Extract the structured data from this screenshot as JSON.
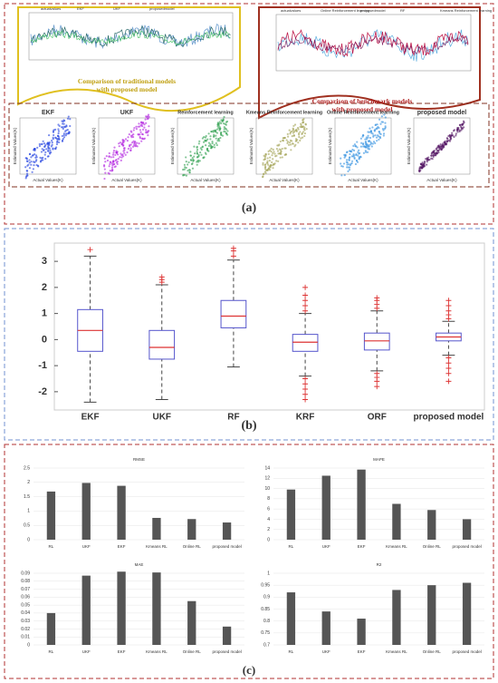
{
  "panel_labels": [
    "(a)",
    "(b)",
    "(c)"
  ],
  "panel_a": {
    "left_legend": [
      "actualvalues",
      "EKF",
      "UKF",
      "proposedmodel"
    ],
    "left_caption": "Comparison of traditional models with proposed model",
    "right_legend": [
      "actualvalues",
      "Online Reinforcement learning",
      "proposedmodel",
      "RF",
      "Kmeans Reinforcement learning"
    ],
    "right_caption": "Comparison of benchmark models with proposed model",
    "scatter_titles": [
      "EKF",
      "UKF",
      "Reinforcement learning",
      "Kmeans Reinforcement learning",
      "Online Reinforcement learning",
      "proposed model"
    ],
    "x_label": "Actual Values(K)",
    "y_label": "Estimated Values(K)"
  },
  "chart_data": [
    {
      "type": "box",
      "categories": [
        "EKF",
        "UKF",
        "RF",
        "KRF",
        "ORF",
        "proposed model"
      ],
      "ylim": [
        -2.7,
        3.7
      ],
      "yticks": [
        -2,
        -1,
        0,
        1,
        2,
        3
      ],
      "whisker_low": [
        -2.4,
        -2.3,
        -1.05,
        -1.4,
        -1.2,
        -0.6
      ],
      "q1": [
        -0.45,
        -0.75,
        0.45,
        -0.45,
        -0.4,
        -0.05
      ],
      "median": [
        0.35,
        -0.3,
        0.9,
        -0.1,
        -0.05,
        0.1
      ],
      "q3": [
        1.15,
        0.35,
        1.5,
        0.2,
        0.25,
        0.25
      ],
      "whisker_high": [
        3.2,
        2.1,
        3.05,
        1.0,
        1.1,
        0.7
      ],
      "outliers": [
        [
          3.45
        ],
        [
          2.2,
          2.3,
          2.4
        ],
        [
          3.2,
          3.4,
          3.5
        ],
        [
          1.1,
          1.3,
          1.5,
          1.7,
          2.0,
          -1.5,
          -1.7,
          -1.9,
          -2.1,
          -2.3
        ],
        [
          1.2,
          1.35,
          1.5,
          1.6,
          -1.3,
          -1.45,
          -1.6,
          -1.8
        ],
        [
          0.8,
          0.95,
          1.1,
          1.3,
          1.5,
          -0.7,
          -0.9,
          -1.1,
          -1.3,
          -1.6
        ]
      ],
      "box_color": "#5555cc",
      "median_color": "#dd3333"
    },
    {
      "type": "bar",
      "title": "RMSE",
      "categories": [
        "RL",
        "UKF",
        "EKF",
        "Kmeans RL",
        "Online RL",
        "proposed model"
      ],
      "values": [
        1.68,
        1.98,
        1.88,
        0.76,
        0.72,
        0.6
      ],
      "ylim": [
        0,
        2.5
      ],
      "yticks": [
        0,
        0.5,
        1,
        1.5,
        2,
        2.5
      ],
      "color": "#555555"
    },
    {
      "type": "bar",
      "title": "MAPE",
      "categories": [
        "RL",
        "UKF",
        "EKF",
        "Kmeans RL",
        "Online RL",
        "proposed model"
      ],
      "values": [
        9.8,
        12.5,
        13.7,
        7.0,
        5.8,
        4.0
      ],
      "ylim": [
        0,
        14
      ],
      "yticks": [
        0,
        2,
        4,
        6,
        8,
        10,
        12,
        14
      ],
      "color": "#555555"
    },
    {
      "type": "bar",
      "title": "MAE",
      "categories": [
        "RL",
        "UKF",
        "EKF",
        "Kmeans RL",
        "Online RL",
        "proposed model"
      ],
      "values": [
        0.04,
        0.087,
        0.092,
        0.091,
        0.055,
        0.023
      ],
      "ylim": [
        0,
        0.09
      ],
      "yticks": [
        0,
        0.01,
        0.02,
        0.03,
        0.04,
        0.05,
        0.06,
        0.07,
        0.08,
        0.09
      ],
      "color": "#555555"
    },
    {
      "type": "bar",
      "title": "R2",
      "categories": [
        "RL",
        "UKF",
        "EKF",
        "Kmeans RL",
        "Online RL",
        "proposed model"
      ],
      "values": [
        0.92,
        0.84,
        0.81,
        0.93,
        0.95,
        0.96
      ],
      "ylim": [
        0.7,
        1
      ],
      "yticks": [
        0.7,
        0.75,
        0.8,
        0.85,
        0.9,
        0.95,
        1
      ],
      "color": "#555555"
    }
  ]
}
